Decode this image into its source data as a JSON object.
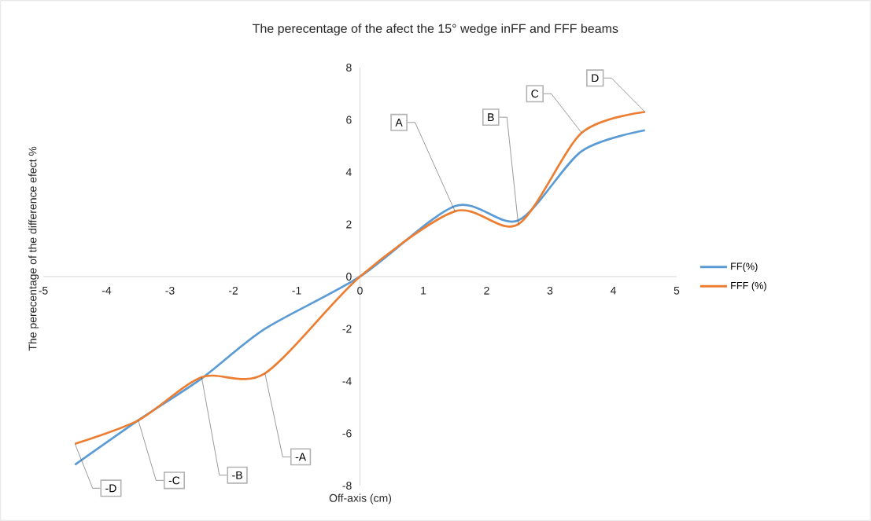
{
  "chart_data": {
    "type": "line",
    "title": "The perecentage of the afect the 15° wedge inFF and FFF beams",
    "xlabel": "Off-axis (cm)",
    "ylabel": "The perecentage of the difference  efect %",
    "x": [
      -4.5,
      -3.5,
      -2.5,
      -1.5,
      0,
      1.5,
      2.5,
      3.5,
      4.5
    ],
    "series": [
      {
        "name": "FF(%)",
        "color": "#5b9bd5",
        "values": [
          -7.2,
          -5.5,
          -3.9,
          -2.0,
          0,
          2.7,
          2.15,
          4.8,
          5.6
        ]
      },
      {
        "name": "FFF (%)",
        "color": "#ed7d31",
        "values": [
          -6.4,
          -5.5,
          -3.85,
          -3.7,
          0,
          2.5,
          2.0,
          5.5,
          6.3
        ]
      }
    ],
    "xlim": [
      -5,
      5
    ],
    "xticks": [
      -5,
      -4,
      -3,
      -2,
      -1,
      0,
      1,
      2,
      3,
      4,
      5
    ],
    "ylim": [
      -8,
      8
    ],
    "yticks": [
      -8,
      -6,
      -4,
      -2,
      0,
      2,
      4,
      6,
      8
    ],
    "annotations": [
      {
        "text": "A",
        "x": 1.5,
        "y": 2.5
      },
      {
        "text": "B",
        "x": 2.5,
        "y": 2.0
      },
      {
        "text": "C",
        "x": 3.5,
        "y": 5.5
      },
      {
        "text": "D",
        "x": 4.5,
        "y": 6.3
      },
      {
        "text": "-A",
        "x": -1.5,
        "y": -3.7
      },
      {
        "text": "-B",
        "x": -2.5,
        "y": -3.85
      },
      {
        "text": "-C",
        "x": -3.5,
        "y": -5.5
      },
      {
        "text": "-D",
        "x": -4.5,
        "y": -6.4
      }
    ],
    "legend": "right",
    "grid": false,
    "marker": "none",
    "line_style": "solid"
  }
}
